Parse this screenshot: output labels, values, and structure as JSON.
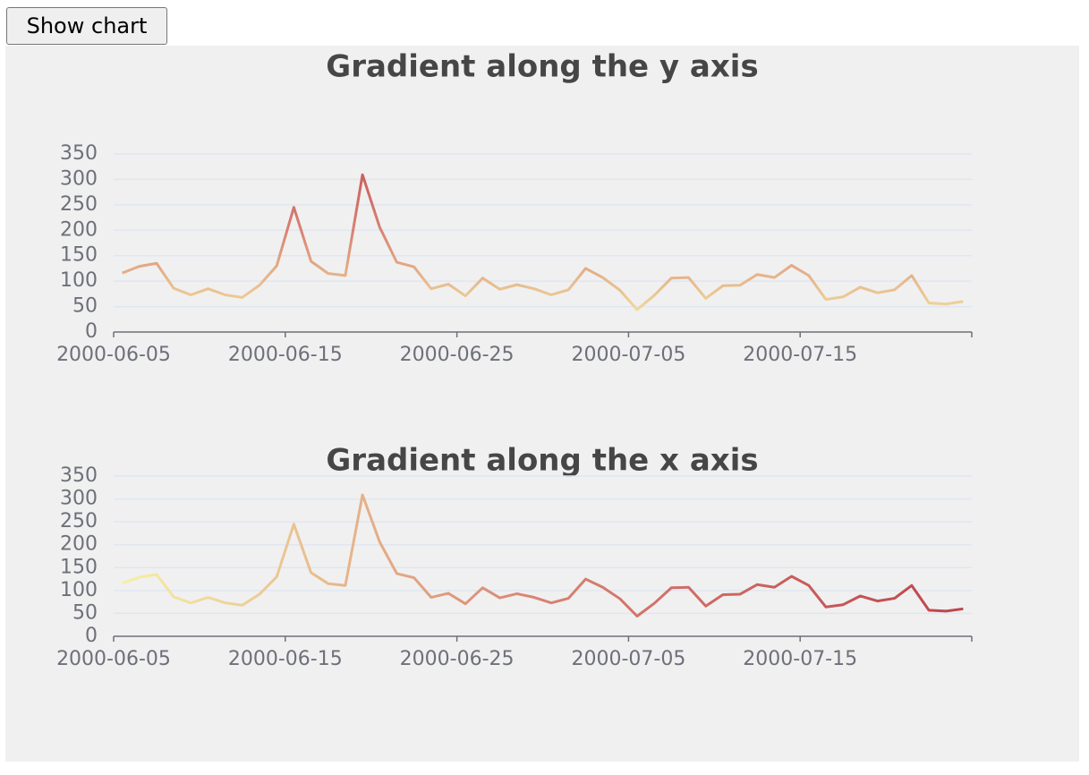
{
  "button": {
    "label": "Show chart"
  },
  "chart_data": [
    {
      "type": "line",
      "title": "Gradient along the y axis",
      "categories": [
        "2000-06-05",
        null,
        null,
        null,
        null,
        null,
        null,
        null,
        null,
        null,
        "2000-06-15",
        null,
        null,
        null,
        null,
        null,
        null,
        null,
        null,
        null,
        "2000-06-25",
        null,
        null,
        null,
        null,
        null,
        null,
        null,
        null,
        null,
        "2000-07-05",
        null,
        null,
        null,
        null,
        null,
        null,
        null,
        null,
        null,
        "2000-07-15",
        null,
        null,
        null,
        null,
        null,
        null,
        null,
        null,
        null
      ],
      "values": [
        116,
        129,
        135,
        86,
        73,
        85,
        73,
        68,
        92,
        130,
        245,
        139,
        115,
        111,
        309,
        206,
        137,
        128,
        85,
        94,
        71,
        106,
        84,
        93,
        85,
        73,
        83,
        125,
        107,
        82,
        44,
        72,
        106,
        107,
        66,
        91,
        92,
        113,
        107,
        131,
        111,
        64,
        69,
        88,
        77,
        83,
        111,
        57,
        55,
        60
      ],
      "ylim": [
        0,
        350
      ],
      "yticks": [
        0,
        50,
        100,
        150,
        200,
        250,
        300,
        350
      ],
      "grid": true,
      "gradient": {
        "dimension": "y",
        "range": [
          0,
          400
        ],
        "colors": [
          "#f6efa6",
          "#d88273",
          "#bf444c"
        ]
      }
    },
    {
      "type": "line",
      "title": "Gradient along the x axis",
      "categories": [
        "2000-06-05",
        null,
        null,
        null,
        null,
        null,
        null,
        null,
        null,
        null,
        "2000-06-15",
        null,
        null,
        null,
        null,
        null,
        null,
        null,
        null,
        null,
        "2000-06-25",
        null,
        null,
        null,
        null,
        null,
        null,
        null,
        null,
        null,
        "2000-07-05",
        null,
        null,
        null,
        null,
        null,
        null,
        null,
        null,
        null,
        "2000-07-15",
        null,
        null,
        null,
        null,
        null,
        null,
        null,
        null,
        null
      ],
      "values": [
        116,
        129,
        135,
        86,
        73,
        85,
        73,
        68,
        92,
        130,
        245,
        139,
        115,
        111,
        309,
        206,
        137,
        128,
        85,
        94,
        71,
        106,
        84,
        93,
        85,
        73,
        83,
        125,
        107,
        82,
        44,
        72,
        106,
        107,
        66,
        91,
        92,
        113,
        107,
        131,
        111,
        64,
        69,
        88,
        77,
        83,
        111,
        57,
        55,
        60
      ],
      "ylim": [
        0,
        350
      ],
      "yticks": [
        0,
        50,
        100,
        150,
        200,
        250,
        300,
        350
      ],
      "grid": true,
      "gradient": {
        "dimension": "x",
        "range": [
          0,
          49
        ],
        "colors": [
          "#f6efa6",
          "#d88273",
          "#bf444c"
        ]
      }
    }
  ]
}
